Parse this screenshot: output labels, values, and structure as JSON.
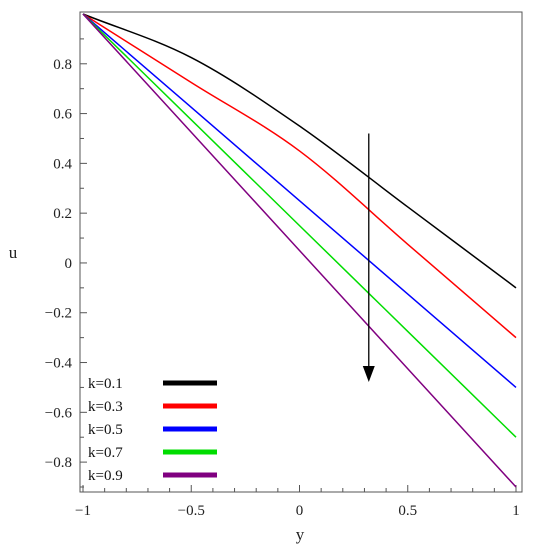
{
  "chart_data": {
    "type": "line",
    "title": "",
    "xlabel": "y",
    "ylabel": "u",
    "xlim": [
      -1,
      1
    ],
    "ylim": [
      -0.9,
      1
    ],
    "grid": false,
    "legend_position": "bottom-left",
    "x": [
      -1,
      -0.5,
      0,
      0.5,
      1
    ],
    "x_ticks": [
      {
        "value": -1,
        "label": "−1"
      },
      {
        "value": -0.5,
        "label": "−0.5"
      },
      {
        "value": 0,
        "label": "0"
      },
      {
        "value": 0.5,
        "label": "0.5"
      },
      {
        "value": 1,
        "label": "1"
      }
    ],
    "y_ticks": [
      {
        "value": 0.8,
        "label": "0.8"
      },
      {
        "value": 0.6,
        "label": "0.6"
      },
      {
        "value": 0.4,
        "label": "0.4"
      },
      {
        "value": 0.2,
        "label": "0.2"
      },
      {
        "value": 0,
        "label": "0"
      },
      {
        "value": -0.2,
        "label": "−0.2"
      },
      {
        "value": -0.4,
        "label": "−0.4"
      },
      {
        "value": -0.6,
        "label": "−0.6"
      },
      {
        "value": -0.8,
        "label": "−0.8"
      }
    ],
    "series": [
      {
        "name": "k=0.1",
        "color": "#000000",
        "values": [
          1,
          0.825,
          0.55,
          0.225,
          -0.1
        ]
      },
      {
        "name": "k=0.3",
        "color": "#ff0000",
        "values": [
          1,
          0.725,
          0.45,
          0.075,
          -0.3
        ]
      },
      {
        "name": "k=0.5",
        "color": "#0000ff",
        "values": [
          1,
          0.625,
          0.25,
          -0.125,
          -0.5
        ]
      },
      {
        "name": "k=0.7",
        "color": "#00dd00",
        "values": [
          1,
          0.575,
          0.15,
          -0.275,
          -0.7
        ]
      },
      {
        "name": "k=0.9",
        "color": "#800080",
        "values": [
          1,
          0.525,
          0.05,
          -0.425,
          -0.9
        ]
      }
    ],
    "annotations": [
      {
        "type": "arrow",
        "direction": "down",
        "x": 0.32,
        "y_start": 0.52,
        "y_end": -0.47,
        "color": "#000000"
      }
    ]
  }
}
